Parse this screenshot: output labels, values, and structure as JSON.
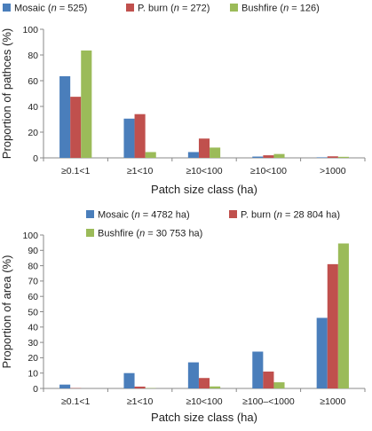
{
  "chart_data": [
    {
      "type": "bar",
      "legend_placement": "top",
      "categories": [
        "≥0.1<1",
        "≥1<10",
        "≥10<100",
        "≥10<100",
        ">1000"
      ],
      "series": [
        {
          "name": "Mosaic",
          "n_label": "n",
          "n_value": "525",
          "color": "#4a7ebb",
          "values": [
            63.5,
            30.5,
            4.5,
            1.0,
            0.4
          ]
        },
        {
          "name": "P. burn",
          "n_label": "n",
          "n_value": "272",
          "color": "#c0504d",
          "values": [
            47.5,
            34.0,
            15.0,
            2.0,
            1.2
          ]
        },
        {
          "name": "Bushfire",
          "n_label": "n",
          "n_value": "126",
          "color": "#9bbb59",
          "values": [
            83.5,
            4.5,
            8.0,
            3.0,
            0.8
          ]
        }
      ],
      "xlabel": "Patch size class (ha)",
      "ylabel": "Proportion of pathces (%)",
      "ylim": [
        0,
        100
      ],
      "yticks": [
        0,
        20,
        40,
        60,
        80,
        100
      ],
      "grid": false
    },
    {
      "type": "bar",
      "legend_placement": "top",
      "categories": [
        "≥0.1<1",
        "≥1<10",
        "≥10<100",
        "≥100–<1000",
        "≥1000"
      ],
      "series": [
        {
          "name": "Mosaic",
          "n_label": "n",
          "n_value": "4782 ha",
          "color": "#4a7ebb",
          "values": [
            2.5,
            10.0,
            17.0,
            24.0,
            46.0
          ]
        },
        {
          "name": "P. burn",
          "n_label": "n",
          "n_value": "28 804 ha",
          "color": "#c0504d",
          "values": [
            0.2,
            1.2,
            6.8,
            11.0,
            81.0
          ]
        },
        {
          "name": "Bushfire",
          "n_label": "n",
          "n_value": "30 753 ha",
          "color": "#9bbb59",
          "values": [
            0.0,
            0.2,
            1.3,
            4.0,
            94.5
          ]
        }
      ],
      "xlabel": "Patch size class (ha)",
      "ylabel": "Proportion of area (%)",
      "ylim": [
        0,
        100
      ],
      "yticks": [
        0,
        10,
        20,
        30,
        40,
        50,
        60,
        70,
        80,
        90,
        100
      ],
      "grid": false
    }
  ]
}
